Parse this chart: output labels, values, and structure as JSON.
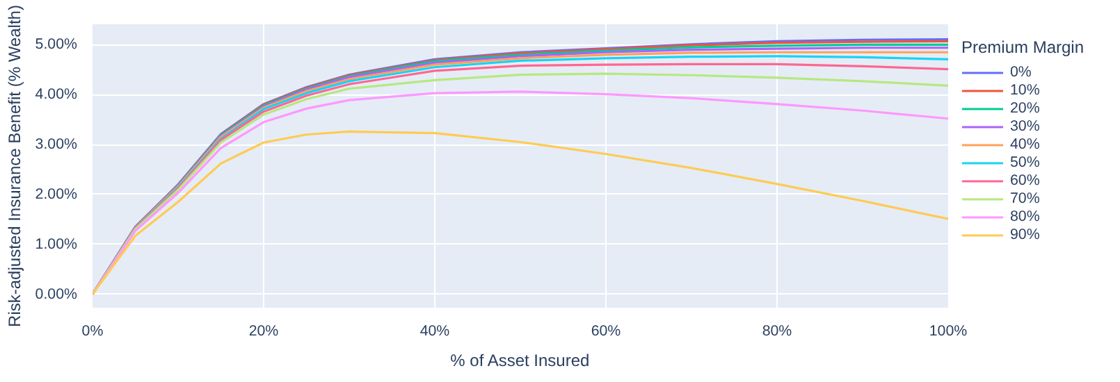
{
  "chart_data": {
    "type": "line",
    "xlabel": "% of Asset Insured",
    "ylabel": "Risk-adjusted Insurance Benefit (% Wealth)",
    "legend_title": "Premium Margin",
    "x": [
      0,
      5,
      10,
      15,
      20,
      25,
      30,
      40,
      50,
      60,
      70,
      80,
      90,
      100
    ],
    "xlim": [
      0,
      100
    ],
    "ylim": [
      -0.27,
      5.41
    ],
    "xticks": [
      {
        "value": 0,
        "label": "0%"
      },
      {
        "value": 20,
        "label": "20%"
      },
      {
        "value": 40,
        "label": "40%"
      },
      {
        "value": 60,
        "label": "60%"
      },
      {
        "value": 80,
        "label": "80%"
      },
      {
        "value": 100,
        "label": "100%"
      }
    ],
    "yticks": [
      {
        "value": 0,
        "label": "0.00%"
      },
      {
        "value": 1,
        "label": "1.00%"
      },
      {
        "value": 2,
        "label": "2.00%"
      },
      {
        "value": 3,
        "label": "3.00%"
      },
      {
        "value": 4,
        "label": "4.00%"
      },
      {
        "value": 5,
        "label": "5.00%"
      }
    ],
    "grid": true,
    "legend": "right",
    "marker": "none",
    "line_style": "solid",
    "series": [
      {
        "name": "0%",
        "color": "#636efa",
        "values": [
          0,
          1.35,
          2.2,
          3.21,
          3.81,
          4.15,
          4.4,
          4.71,
          4.85,
          4.93,
          5.01,
          5.07,
          5.1,
          5.11
        ]
      },
      {
        "name": "10%",
        "color": "#ef553b",
        "values": [
          0,
          1.35,
          2.19,
          3.2,
          3.8,
          4.14,
          4.39,
          4.69,
          4.83,
          4.91,
          4.99,
          5.04,
          5.06,
          5.07
        ]
      },
      {
        "name": "20%",
        "color": "#00cc96",
        "values": [
          0,
          1.34,
          2.18,
          3.19,
          3.78,
          4.12,
          4.37,
          4.67,
          4.8,
          4.88,
          4.95,
          4.98,
          5.0,
          5.0
        ]
      },
      {
        "name": "30%",
        "color": "#ab63fa",
        "values": [
          0,
          1.34,
          2.17,
          3.17,
          3.76,
          4.1,
          4.35,
          4.64,
          4.77,
          4.85,
          4.9,
          4.92,
          4.94,
          4.94
        ]
      },
      {
        "name": "40%",
        "color": "#ffa15a",
        "values": [
          0,
          1.33,
          2.16,
          3.15,
          3.74,
          4.07,
          4.31,
          4.6,
          4.73,
          4.8,
          4.84,
          4.85,
          4.85,
          4.85
        ]
      },
      {
        "name": "50%",
        "color": "#19d3f3",
        "values": [
          0,
          1.32,
          2.14,
          3.12,
          3.71,
          4.03,
          4.27,
          4.55,
          4.68,
          4.73,
          4.76,
          4.77,
          4.75,
          4.71
        ]
      },
      {
        "name": "60%",
        "color": "#ff6692",
        "values": [
          0,
          1.31,
          2.12,
          3.09,
          3.66,
          3.98,
          4.21,
          4.48,
          4.58,
          4.6,
          4.61,
          4.61,
          4.57,
          4.51
        ]
      },
      {
        "name": "70%",
        "color": "#b6e880",
        "values": [
          0,
          1.3,
          2.09,
          3.04,
          3.6,
          3.91,
          4.12,
          4.29,
          4.4,
          4.42,
          4.39,
          4.34,
          4.27,
          4.18
        ]
      },
      {
        "name": "80%",
        "color": "#ff97ff",
        "values": [
          0,
          1.27,
          2.03,
          2.93,
          3.45,
          3.72,
          3.89,
          4.03,
          4.06,
          4.01,
          3.93,
          3.81,
          3.68,
          3.52
        ]
      },
      {
        "name": "90%",
        "color": "#fecb52",
        "values": [
          0,
          1.17,
          1.85,
          2.62,
          3.04,
          3.2,
          3.26,
          3.23,
          3.05,
          2.81,
          2.53,
          2.21,
          1.87,
          1.51
        ]
      }
    ]
  }
}
